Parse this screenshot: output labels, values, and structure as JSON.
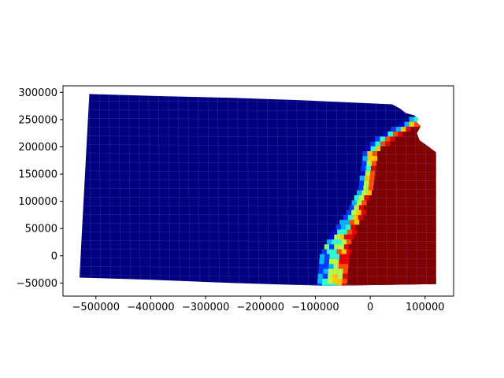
{
  "chart_data": {
    "type": "heatmap",
    "title": "",
    "xlabel": "",
    "ylabel": "",
    "colormap": "jet",
    "xlim": [
      -560000,
      152000
    ],
    "ylim": [
      -74000,
      312000
    ],
    "x_ticks": [
      -500000,
      -400000,
      -300000,
      -200000,
      -100000,
      0,
      100000
    ],
    "x_tick_labels": [
      "−500000",
      "−400000",
      "−300000",
      "−200000",
      "−100000",
      "0",
      "100000"
    ],
    "y_ticks": [
      -50000,
      0,
      50000,
      100000,
      150000,
      200000,
      250000,
      300000
    ],
    "y_tick_labels": [
      "−50000",
      "0",
      "50000",
      "100000",
      "150000",
      "200000",
      "250000",
      "300000"
    ],
    "region_outline": [
      [
        -512000,
        297000
      ],
      [
        -380000,
        293000
      ],
      [
        -250000,
        290000
      ],
      [
        -110000,
        285000
      ],
      [
        40000,
        278000
      ],
      [
        55000,
        270000
      ],
      [
        65000,
        262000
      ],
      [
        80000,
        258000
      ],
      [
        88000,
        252000
      ],
      [
        85000,
        245000
      ],
      [
        92000,
        238000
      ],
      [
        85000,
        225000
      ],
      [
        90000,
        212000
      ],
      [
        104000,
        202000
      ],
      [
        120000,
        190000
      ],
      [
        120000,
        -52000
      ],
      [
        -80000,
        -55000
      ],
      [
        -250000,
        -50000
      ],
      [
        -400000,
        -44000
      ],
      [
        -530000,
        -40000
      ]
    ],
    "region_value_note": "",
    "cells": [
      {
        "x": -70000,
        "y": 250000,
        "value": 0.05
      }
    ],
    "bands": [
      {
        "value": 0.0,
        "xmax_at": [
          [
            297000,
            65000
          ],
          [
            250000,
            60000
          ],
          [
            215000,
            30000
          ],
          [
            180000,
            -10000
          ],
          [
            120000,
            -20000
          ],
          [
            70000,
            -45000
          ],
          [
            40000,
            -75000
          ],
          [
            0,
            -80000
          ],
          [
            -55000,
            -80000
          ]
        ]
      },
      {
        "value": 0.12,
        "xmax_at": [
          [
            250000,
            70000
          ],
          [
            215000,
            40000
          ],
          [
            180000,
            0
          ],
          [
            120000,
            -10000
          ],
          [
            70000,
            -30000
          ],
          [
            40000,
            -55000
          ],
          [
            0,
            -70000
          ],
          [
            -55000,
            -72000
          ]
        ]
      },
      {
        "value": 0.35,
        "xmax_at": [
          [
            225000,
            75000
          ],
          [
            195000,
            25000
          ],
          [
            160000,
            5000
          ],
          [
            120000,
            0
          ],
          [
            70000,
            -15000
          ],
          [
            40000,
            -40000
          ],
          [
            0,
            -55000
          ],
          [
            -55000,
            -58000
          ]
        ]
      },
      {
        "value": 0.5,
        "xmax_at": [
          [
            210000,
            55000
          ],
          [
            180000,
            10000
          ],
          [
            140000,
            10000
          ],
          [
            100000,
            5000
          ],
          [
            70000,
            -10000
          ],
          [
            40000,
            -30000
          ],
          [
            0,
            -45000
          ],
          [
            -55000,
            -48000
          ]
        ]
      },
      {
        "value": 0.75,
        "xmax_at": [
          [
            205000,
            60000
          ],
          [
            175000,
            15000
          ],
          [
            130000,
            15000
          ],
          [
            100000,
            12000
          ],
          [
            70000,
            -5000
          ],
          [
            40000,
            -25000
          ],
          [
            0,
            -40000
          ],
          [
            -55000,
            -40000
          ]
        ]
      },
      {
        "value": 1.0,
        "xmax_at": [
          [
            205000,
            120000
          ],
          [
            120000,
            120000
          ],
          [
            -55000,
            120000
          ]
        ]
      }
    ]
  }
}
